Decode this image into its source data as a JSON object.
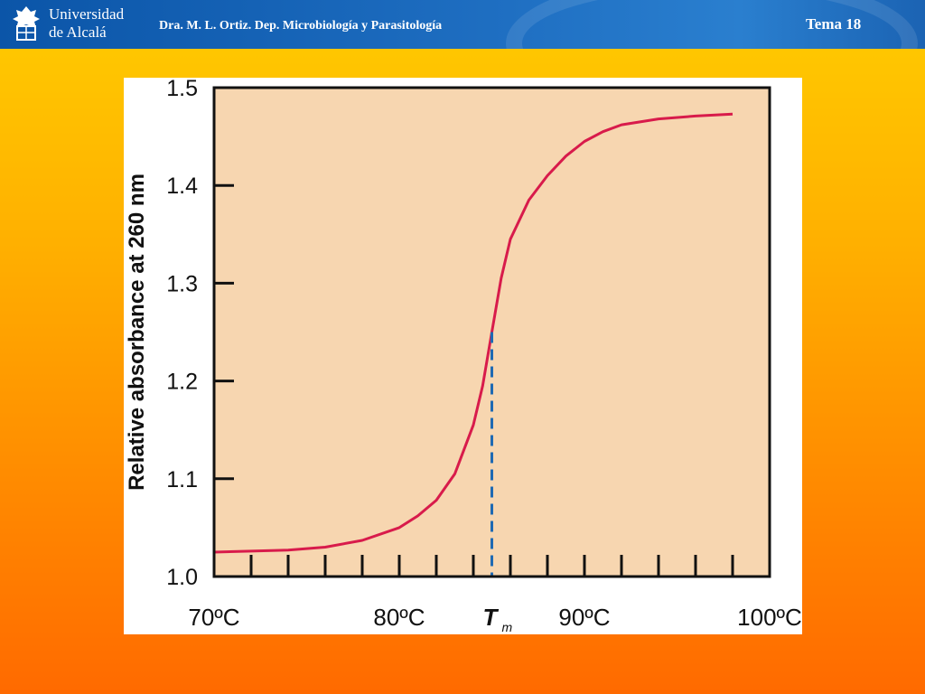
{
  "header": {
    "university_line1": "Universidad",
    "university_line2": "de Alcalá",
    "lecturer": "Dra. M. L. Ortiz. Dep. Microbiología y Parasitología",
    "topic": "Tema 18"
  },
  "colors": {
    "header_blue": "#1f6fc2",
    "plot_background": "#f7d6b0",
    "curve": "#d81b4b",
    "tm_marker": "#1f6ab3"
  },
  "chart_data": {
    "type": "line",
    "ylabel": "Relative absorbance at 260 nm",
    "xlim": [
      70,
      100
    ],
    "ylim": [
      1.0,
      1.5
    ],
    "y_ticks": [
      1.0,
      1.1,
      1.2,
      1.3,
      1.4,
      1.5
    ],
    "y_tick_labels": [
      "1.0",
      "1.1",
      "1.2",
      "1.3",
      "1.4",
      "1.5"
    ],
    "x_tick_labels": [
      {
        "value": 70,
        "label": "70ºC"
      },
      {
        "value": 80,
        "label": "80ºC"
      },
      {
        "value": 90,
        "label": "90ºC"
      },
      {
        "value": 100,
        "label": "100ºC"
      }
    ],
    "x_minor_ticks": [
      72,
      74,
      76,
      78,
      80,
      82,
      84,
      86,
      88,
      90,
      92,
      94,
      96,
      98
    ],
    "tm_marker": {
      "x": 85,
      "label": "T",
      "subscript": "m"
    },
    "series": [
      {
        "x": [
          70,
          72,
          74,
          76,
          78,
          80,
          81,
          82,
          83,
          84,
          84.5,
          85,
          85.5,
          86,
          87,
          88,
          89,
          90,
          91,
          92,
          94,
          96,
          98
        ],
        "y": [
          1.025,
          1.026,
          1.027,
          1.03,
          1.037,
          1.05,
          1.062,
          1.078,
          1.105,
          1.155,
          1.195,
          1.25,
          1.305,
          1.345,
          1.385,
          1.41,
          1.43,
          1.445,
          1.455,
          1.462,
          1.468,
          1.471,
          1.473
        ]
      }
    ],
    "grid": false
  }
}
